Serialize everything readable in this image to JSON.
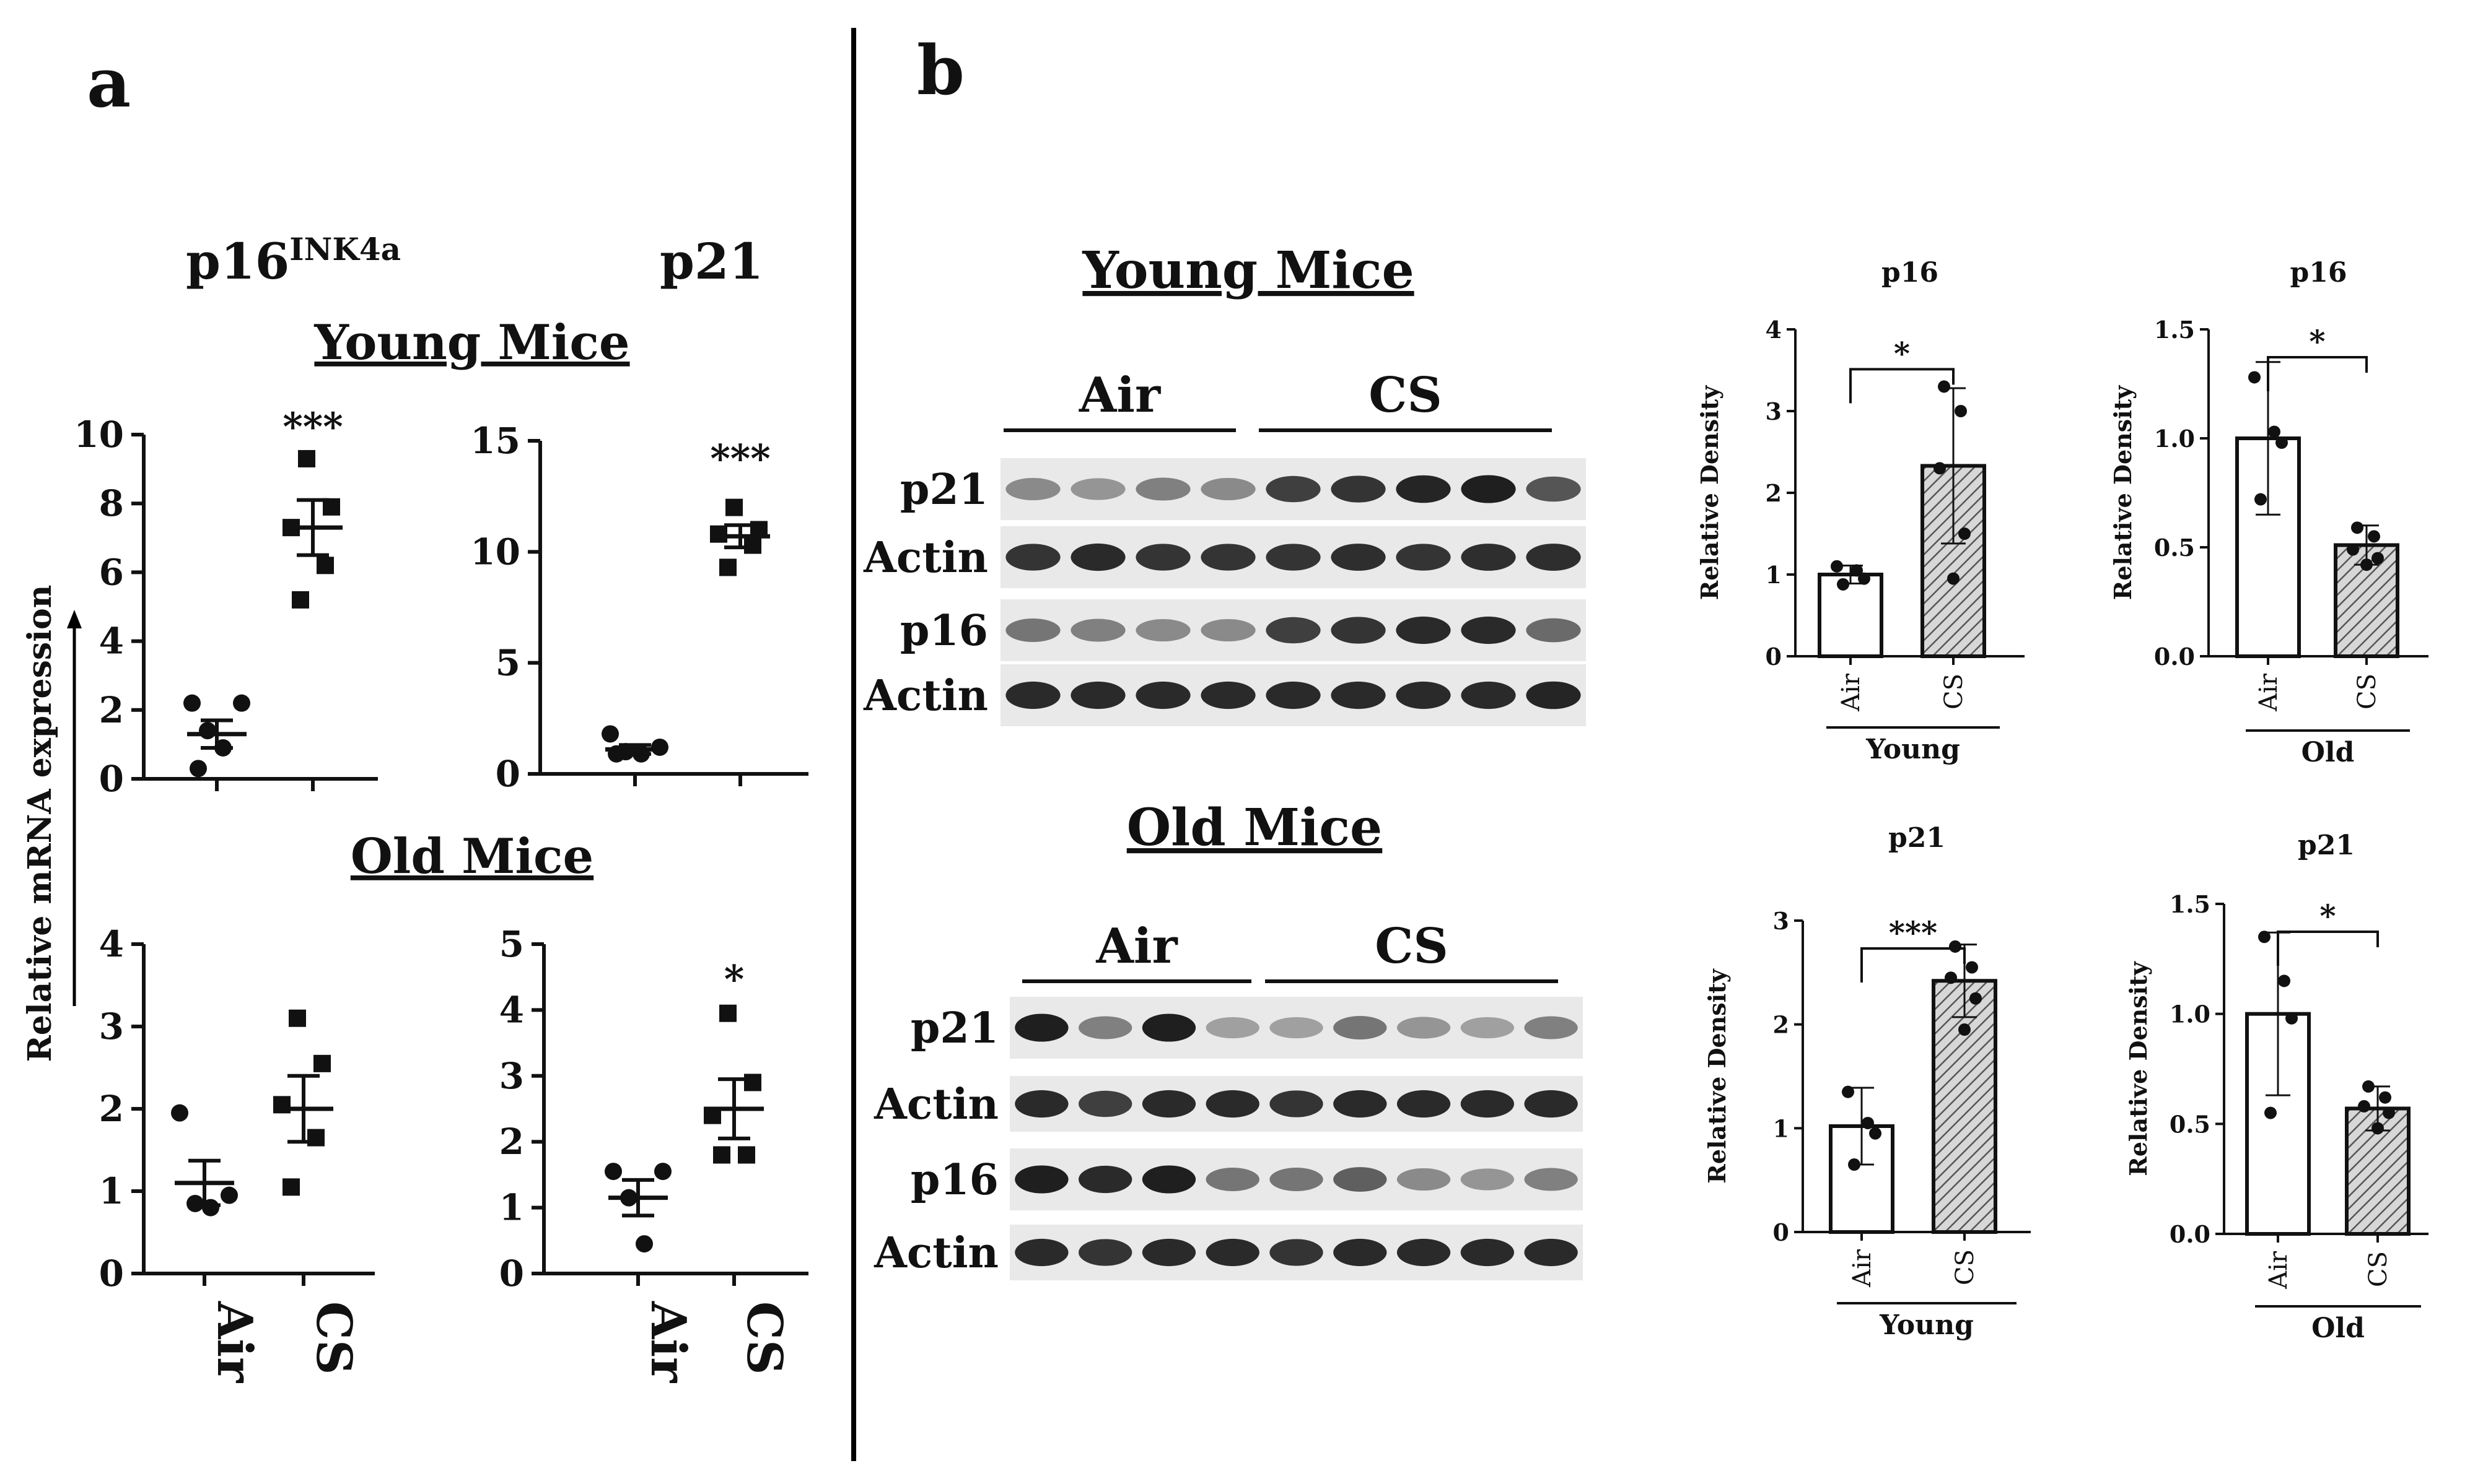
{
  "panels": {
    "a": {
      "label": "a",
      "col_titles": [
        "p16",
        "INK4a",
        "p21"
      ],
      "section_titles": [
        "Young Mice",
        "Old Mice"
      ],
      "ylabel": "Relative mRNA expression"
    },
    "b": {
      "label": "b",
      "section_titles": [
        "Young Mice",
        "Old Mice"
      ]
    }
  },
  "western_blots": [
    {
      "name": "young",
      "group_labels": [
        "Air",
        "CS"
      ],
      "row_labels": [
        "p21",
        "Actin",
        "p16",
        "Actin"
      ],
      "lanes_air": 4,
      "lanes_cs": 5,
      "band_intensity": [
        [
          0.45,
          0.4,
          0.5,
          0.45,
          0.8,
          0.85,
          0.92,
          0.95,
          0.7
        ],
        [
          0.85,
          0.9,
          0.85,
          0.85,
          0.85,
          0.88,
          0.85,
          0.88,
          0.88
        ],
        [
          0.55,
          0.5,
          0.45,
          0.45,
          0.8,
          0.85,
          0.9,
          0.9,
          0.6
        ],
        [
          0.9,
          0.9,
          0.9,
          0.9,
          0.9,
          0.9,
          0.9,
          0.9,
          0.92
        ]
      ]
    },
    {
      "name": "old",
      "group_labels": [
        "Air",
        "CS"
      ],
      "row_labels": [
        "p21",
        "Actin",
        "p16",
        "Actin"
      ],
      "lanes_air": 4,
      "lanes_cs": 5,
      "band_intensity": [
        [
          0.95,
          0.5,
          0.95,
          0.35,
          0.35,
          0.55,
          0.4,
          0.35,
          0.5
        ],
        [
          0.9,
          0.8,
          0.9,
          0.9,
          0.85,
          0.9,
          0.9,
          0.9,
          0.9
        ],
        [
          0.95,
          0.9,
          0.95,
          0.55,
          0.55,
          0.65,
          0.45,
          0.4,
          0.5
        ],
        [
          0.9,
          0.85,
          0.9,
          0.9,
          0.85,
          0.9,
          0.9,
          0.9,
          0.9
        ]
      ]
    }
  ],
  "chart_data": [
    {
      "id": "a1",
      "type": "scatter",
      "title": "p16INK4a",
      "subtitle": "Young Mice",
      "categories": [
        "Air",
        "CS"
      ],
      "ylim": [
        0,
        10
      ],
      "yticks": [
        "0",
        "2",
        "4",
        "6",
        "8",
        "10"
      ],
      "series": [
        {
          "name": "Air",
          "marker": "circle",
          "points": [
            2.2,
            2.2,
            1.4,
            0.9,
            0.3
          ],
          "mean": 1.3,
          "sem": 0.4
        },
        {
          "name": "CS",
          "marker": "square",
          "points": [
            9.3,
            7.9,
            7.3,
            6.2,
            5.2
          ],
          "mean": 7.3,
          "sem": 0.8
        }
      ],
      "annotations": [
        {
          "text": "***",
          "category": "CS",
          "y": 10.3
        }
      ]
    },
    {
      "id": "a2",
      "type": "scatter",
      "title": "p21",
      "subtitle": "Young Mice",
      "categories": [
        "Air",
        "CS"
      ],
      "ylim": [
        0,
        15
      ],
      "yticks": [
        "0",
        "5",
        "10",
        "15"
      ],
      "series": [
        {
          "name": "Air",
          "marker": "circle",
          "points": [
            1.8,
            1.2,
            1.0,
            0.9,
            0.9
          ],
          "mean": 1.1,
          "sem": 0.2
        },
        {
          "name": "CS",
          "marker": "square",
          "points": [
            12.0,
            11.0,
            10.8,
            10.3,
            9.3
          ],
          "mean": 10.7,
          "sem": 0.5
        }
      ],
      "annotations": [
        {
          "text": "***",
          "category": "CS",
          "y": 14.3
        }
      ]
    },
    {
      "id": "a3",
      "type": "scatter",
      "title": "p16INK4a",
      "subtitle": "Old Mice",
      "categories": [
        "Air",
        "CS"
      ],
      "ylim": [
        0,
        4
      ],
      "yticks": [
        "0",
        "1",
        "2",
        "3",
        "4"
      ],
      "xtick_labels": [
        "Air",
        "CS"
      ],
      "series": [
        {
          "name": "Air",
          "marker": "circle",
          "points": [
            1.95,
            0.95,
            0.85,
            0.8
          ],
          "mean": 1.1,
          "sem": 0.27
        },
        {
          "name": "CS",
          "marker": "square",
          "points": [
            3.1,
            2.55,
            2.05,
            1.65,
            1.05
          ],
          "mean": 2.0,
          "sem": 0.4
        }
      ]
    },
    {
      "id": "a4",
      "type": "scatter",
      "title": "p21",
      "subtitle": "Old Mice",
      "categories": [
        "Air",
        "CS"
      ],
      "ylim": [
        0,
        5
      ],
      "yticks": [
        "0",
        "1",
        "2",
        "3",
        "4",
        "5"
      ],
      "xtick_labels": [
        "Air",
        "CS"
      ],
      "series": [
        {
          "name": "Air",
          "marker": "circle",
          "points": [
            1.55,
            1.55,
            1.15,
            0.45
          ],
          "mean": 1.15,
          "sem": 0.27
        },
        {
          "name": "CS",
          "marker": "square",
          "points": [
            3.95,
            2.9,
            2.4,
            1.8,
            1.8
          ],
          "mean": 2.5,
          "sem": 0.45
        }
      ],
      "annotations": [
        {
          "text": "*",
          "category": "CS",
          "y": 4.5
        }
      ]
    },
    {
      "id": "b1",
      "type": "bar",
      "title": "p16",
      "ylabel": "Relative Density",
      "group_label": "Young",
      "categories": [
        "Air",
        "CS"
      ],
      "ylim": [
        0,
        4
      ],
      "yticks": [
        "0",
        "1",
        "2",
        "3",
        "4"
      ],
      "values": [
        1.0,
        2.33
      ],
      "errors": [
        0.11,
        0.95
      ],
      "points": [
        [
          1.1,
          1.05,
          0.95,
          0.88
        ],
        [
          3.3,
          3.0,
          2.3,
          1.5,
          0.95
        ]
      ],
      "fills": [
        "open",
        "hatched"
      ],
      "significance": "*"
    },
    {
      "id": "b2",
      "type": "bar",
      "title": "p16",
      "ylabel": "Relative Density",
      "group_label": "Old",
      "categories": [
        "Air",
        "CS"
      ],
      "ylim": [
        0,
        1.5
      ],
      "yticks": [
        "0.0",
        "0.5",
        "1.0",
        "1.5"
      ],
      "values": [
        1.0,
        0.51
      ],
      "errors": [
        0.35,
        0.09
      ],
      "points": [
        [
          1.28,
          1.03,
          0.98,
          0.72
        ],
        [
          0.59,
          0.55,
          0.49,
          0.45,
          0.42
        ]
      ],
      "fills": [
        "open",
        "hatched"
      ],
      "significance": "*"
    },
    {
      "id": "b3",
      "type": "bar",
      "title": "p21",
      "ylabel": "Relative Density",
      "group_label": "Young",
      "categories": [
        "Air",
        "CS"
      ],
      "ylim": [
        0,
        3
      ],
      "yticks": [
        "0",
        "1",
        "2",
        "3"
      ],
      "values": [
        1.02,
        2.42
      ],
      "errors": [
        0.37,
        0.35
      ],
      "points": [
        [
          1.35,
          1.05,
          0.95,
          0.65
        ],
        [
          2.75,
          2.55,
          2.45,
          2.25,
          1.95
        ]
      ],
      "fills": [
        "open",
        "hatched"
      ],
      "significance": "***"
    },
    {
      "id": "b4",
      "type": "bar",
      "title": "p21",
      "ylabel": "Relative Density",
      "group_label": "Old",
      "categories": [
        "Air",
        "CS"
      ],
      "ylim": [
        0,
        1.5
      ],
      "yticks": [
        "0.0",
        "0.5",
        "1.0",
        "1.5"
      ],
      "values": [
        1.0,
        0.57
      ],
      "errors": [
        0.37,
        0.1
      ],
      "points": [
        [
          1.35,
          1.15,
          0.98,
          0.55
        ],
        [
          0.67,
          0.62,
          0.58,
          0.55,
          0.48
        ]
      ],
      "fills": [
        "open",
        "hatched"
      ],
      "significance": "*"
    }
  ]
}
